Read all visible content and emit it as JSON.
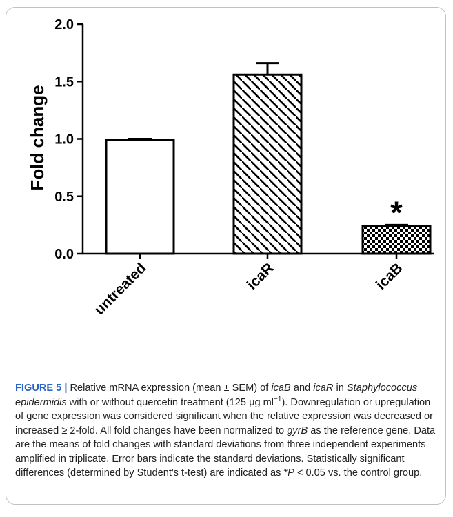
{
  "chart_data": {
    "type": "bar",
    "categories": [
      "untreated",
      "icaR",
      "icaB"
    ],
    "values": [
      0.99,
      1.56,
      0.24
    ],
    "error": [
      0.01,
      0.1,
      0.01
    ],
    "patterns": [
      "solid-white",
      "diagonal-hatch",
      "checker"
    ],
    "annotations": [
      {
        "category": "icaB",
        "text": "*"
      }
    ],
    "ylabel": "Fold change",
    "xlabel": "",
    "ylim": [
      0,
      2.0
    ],
    "yticks": [
      0.0,
      0.5,
      1.0,
      1.5,
      2.0
    ],
    "ytick_labels": [
      "0.0",
      "0.5",
      "1.0",
      "1.5",
      "2.0"
    ],
    "grid": false,
    "colors": {
      "bar_stroke": "#000000",
      "fill": "#ffffff",
      "axis": "#000000"
    }
  },
  "caption": {
    "label": "FIGURE 5 |",
    "parts": [
      {
        "t": " Relative mRNA expression (mean ± SEM) of "
      },
      {
        "t": "icaB",
        "i": true
      },
      {
        "t": " and "
      },
      {
        "t": "icaR",
        "i": true
      },
      {
        "t": " in "
      },
      {
        "t": "Staphylococcus epidermidis",
        "i": true
      },
      {
        "t": " with or without quercetin treatment (125 μg ml"
      },
      {
        "t": "−1",
        "sup": true
      },
      {
        "t": "). Downregulation or upregulation of gene expression was considered significant when the relative expression was decreased or increased ≥ 2-fold. All fold changes have been normalized to "
      },
      {
        "t": "gyrB",
        "i": true
      },
      {
        "t": " as the reference gene. Data are the means of fold changes with standard deviations from three independent experiments amplified in triplicate. Error bars indicate the standard deviations. Statistically significant differences (determined by Student's t-test) are indicated as *"
      },
      {
        "t": "P",
        "i": true
      },
      {
        "t": " < 0.05 vs. the control group."
      }
    ]
  }
}
